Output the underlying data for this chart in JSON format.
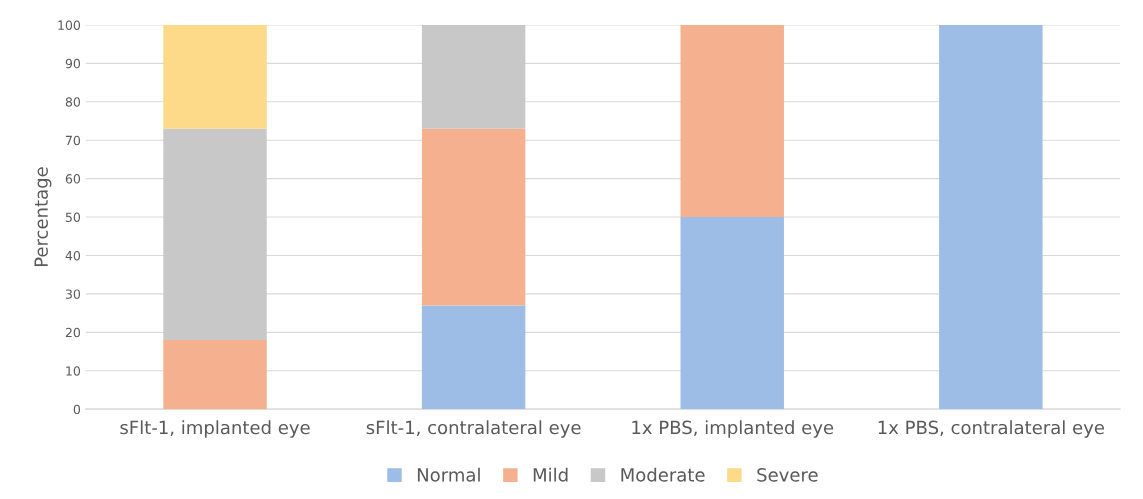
{
  "chart_data": {
    "type": "bar",
    "stacked": true,
    "ylabel": "Percentage",
    "categories": [
      "sFlt-1, implanted eye",
      "sFlt-1, contralateral eye",
      "1x PBS, implanted eye",
      "1x PBS, contralateral eye"
    ],
    "series": [
      {
        "name": "Normal",
        "color": "#9dbde6",
        "values": [
          0,
          27,
          50,
          100
        ]
      },
      {
        "name": "Mild",
        "color": "#f5b08f",
        "values": [
          18,
          46,
          50,
          0
        ]
      },
      {
        "name": "Moderate",
        "color": "#c8c8c8",
        "values": [
          55,
          27,
          0,
          0
        ]
      },
      {
        "name": "Severe",
        "color": "#fdd98a",
        "values": [
          27,
          0,
          0,
          0
        ]
      }
    ],
    "ylim": [
      0,
      100
    ],
    "yticks": [
      0,
      10,
      20,
      30,
      40,
      50,
      60,
      70,
      80,
      90,
      100
    ],
    "grid": "y",
    "legend": "bottom"
  }
}
